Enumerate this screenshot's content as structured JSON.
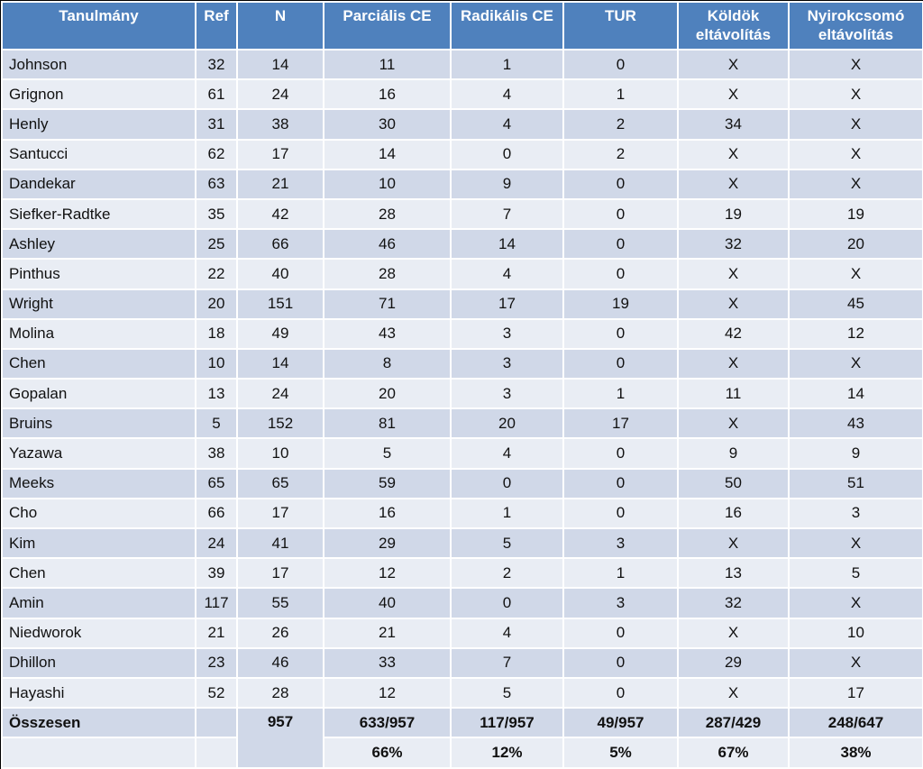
{
  "headers": [
    "Tanulmány",
    "Ref",
    "N",
    "Parciális CE",
    "Radikális CE",
    "TUR",
    "Köldök eltávolítás",
    "Nyirokcsomó eltávolítás"
  ],
  "rows": [
    [
      "Johnson",
      "32",
      "14",
      "11",
      "1",
      "0",
      "X",
      "X"
    ],
    [
      "Grignon",
      "61",
      "24",
      "16",
      "4",
      "1",
      "X",
      "X"
    ],
    [
      "Henly",
      "31",
      "38",
      "30",
      "4",
      "2",
      "34",
      "X"
    ],
    [
      "Santucci",
      "62",
      "17",
      "14",
      "0",
      "2",
      "X",
      "X"
    ],
    [
      "Dandekar",
      "63",
      "21",
      "10",
      "9",
      "0",
      "X",
      "X"
    ],
    [
      "Siefker-Radtke",
      "35",
      "42",
      "28",
      "7",
      "0",
      "19",
      "19"
    ],
    [
      "Ashley",
      "25",
      "66",
      "46",
      "14",
      "0",
      "32",
      "20"
    ],
    [
      "Pinthus",
      "22",
      "40",
      "28",
      "4",
      "0",
      "X",
      "X"
    ],
    [
      "Wright",
      "20",
      "151",
      "71",
      "17",
      "19",
      "X",
      "45"
    ],
    [
      "Molina",
      "18",
      "49",
      "43",
      "3",
      "0",
      "42",
      "12"
    ],
    [
      "Chen",
      "10",
      "14",
      "8",
      "3",
      "0",
      "X",
      "X"
    ],
    [
      "Gopalan",
      "13",
      "24",
      "20",
      "3",
      "1",
      "11",
      "14"
    ],
    [
      "Bruins",
      "5",
      "152",
      "81",
      "20",
      "17",
      "X",
      "43"
    ],
    [
      "Yazawa",
      "38",
      "10",
      "5",
      "4",
      "0",
      "9",
      "9"
    ],
    [
      "Meeks",
      "65",
      "65",
      "59",
      "0",
      "0",
      "50",
      "51"
    ],
    [
      "Cho",
      "66",
      "17",
      "16",
      "1",
      "0",
      "16",
      "3"
    ],
    [
      "Kim",
      "24",
      "41",
      "29",
      "5",
      "3",
      "X",
      "X"
    ],
    [
      "Chen",
      "39",
      "17",
      "12",
      "2",
      "1",
      "13",
      "5"
    ],
    [
      "Amin",
      "117",
      "55",
      "40",
      "0",
      "3",
      "32",
      "X"
    ],
    [
      "Niedworok",
      "21",
      "26",
      "21",
      "4",
      "0",
      "X",
      "10"
    ],
    [
      "Dhillon",
      "23",
      "46",
      "33",
      "7",
      "0",
      "29",
      "X"
    ],
    [
      "Hayashi",
      "52",
      "28",
      "12",
      "5",
      "0",
      "X",
      "17"
    ]
  ],
  "total": {
    "label": "Összesen",
    "ref": "",
    "n": "957",
    "partial": "633/957",
    "radical": "117/957",
    "tur": "49/957",
    "umbilical": "287/429",
    "lymph": "248/647"
  },
  "percent": {
    "partial": "66%",
    "radical": "12%",
    "tur": "5%",
    "umbilical": "67%",
    "lymph": "38%"
  }
}
